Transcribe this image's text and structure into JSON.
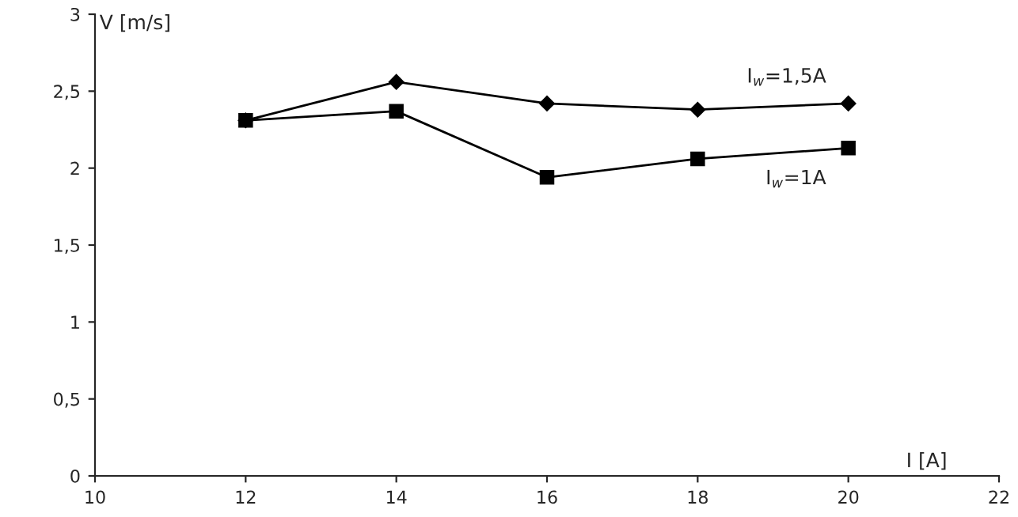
{
  "chart_data": {
    "type": "line",
    "xlabel": "I [A]",
    "ylabel": "V [m/s]",
    "x": [
      12,
      14,
      16,
      18,
      20
    ],
    "series": [
      {
        "name": "I$_{w}$=1,5A",
        "color": "#000000",
        "marker": "diamond",
        "values": [
          2.31,
          2.56,
          2.42,
          2.38,
          2.42
        ]
      },
      {
        "name": "I$_{w}$=1A",
        "color": "#000000",
        "marker": "square",
        "values": [
          2.31,
          2.37,
          1.94,
          2.06,
          2.13
        ]
      }
    ],
    "xlim": [
      10,
      22
    ],
    "xticks": [
      10,
      12,
      14,
      16,
      18,
      20,
      22
    ],
    "ylim": [
      0,
      3
    ],
    "yticks": [
      0,
      {
        "value": 0.5,
        "label": "0,5"
      },
      1,
      {
        "value": 1.5,
        "label": "1,5"
      },
      2,
      {
        "value": 2.5,
        "label": "2,5"
      },
      3
    ],
    "grid": false,
    "legend": false,
    "line_style": "solid"
  }
}
